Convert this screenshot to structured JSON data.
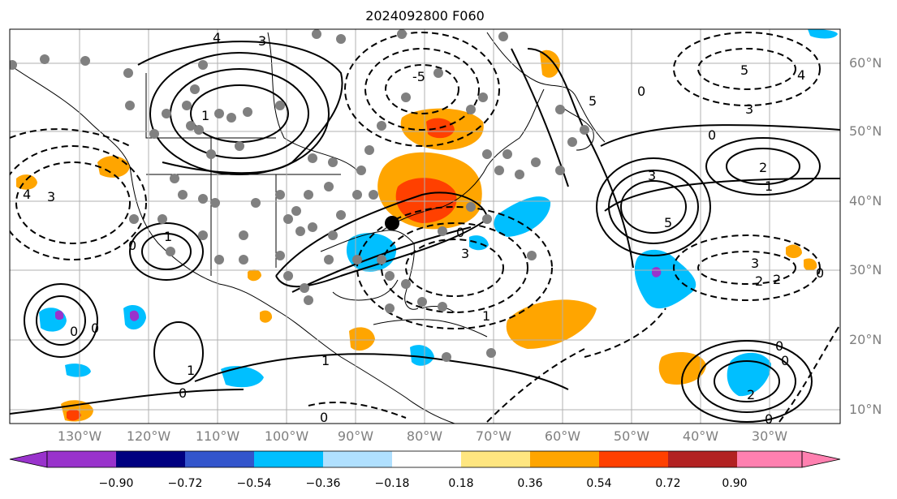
{
  "title": "2024092800 F060",
  "lat_labels": [
    "60°N",
    "50°N",
    "40°N",
    "30°N",
    "20°N",
    "10°N"
  ],
  "lon_labels": [
    "130°W",
    "120°W",
    "110°W",
    "100°W",
    "90°W",
    "80°W",
    "70°W",
    "60°W",
    "50°W",
    "40°W",
    "30°W"
  ],
  "colorbar": {
    "ticks": [
      "−0.90",
      "−0.72",
      "−0.54",
      "−0.36",
      "−0.18",
      "0.18",
      "0.36",
      "0.54",
      "0.72",
      "0.90"
    ],
    "colors": [
      "#9933cc",
      "#000080",
      "#3355cc",
      "#00bfff",
      "#b0e0ff",
      "#ffffff",
      "#ffe680",
      "#ffa500",
      "#ff4000",
      "#b22222",
      "#ff80b0"
    ],
    "extend": "both"
  },
  "contour_labels": [
    "4",
    "3",
    "1",
    "0",
    "-1",
    "-2",
    "-3",
    "-4",
    "-5",
    "5",
    "2"
  ],
  "colors": {
    "positive_fill": "#ffa500",
    "strong_positive": "#ff4000",
    "negative_fill": "#00bfff",
    "contour": "#000000",
    "grid": "#b0b0b0",
    "coast": "#000000"
  }
}
